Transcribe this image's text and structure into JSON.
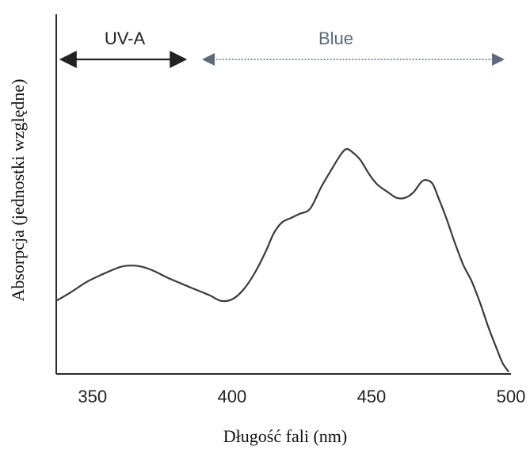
{
  "chart_data": {
    "type": "line",
    "xlabel": "Długość fali (nm)",
    "ylabel": "Absorpcja (jednostki względne)",
    "xlim": [
      337,
      500
    ],
    "ylim": [
      0,
      1
    ],
    "grid": false,
    "x_ticks": [
      350,
      400,
      450,
      500
    ],
    "x_tick_labels": [
      "350",
      "400",
      "450",
      "500"
    ],
    "bands": [
      {
        "label": "UV-A",
        "x_start": 337,
        "x_end": 385,
        "color": "#222222"
      },
      {
        "label": "Blue",
        "x_start": 388,
        "x_end": 499,
        "color": "#5a6a7a"
      }
    ],
    "series": [
      {
        "x": [
          337,
          342,
          348,
          354,
          360,
          364,
          368,
          372,
          378,
          385,
          392,
          396,
          400,
          404,
          408,
          412,
          415,
          418,
          421,
          424,
          428,
          432,
          436,
          439,
          441,
          443,
          446,
          449,
          452,
          456,
          459,
          462,
          465,
          468,
          470,
          472,
          474,
          477,
          480,
          483,
          486,
          489,
          492,
          495,
          497,
          499
        ],
        "y": [
          0.27,
          0.3,
          0.34,
          0.37,
          0.395,
          0.4,
          0.395,
          0.38,
          0.35,
          0.32,
          0.29,
          0.27,
          0.275,
          0.31,
          0.37,
          0.45,
          0.52,
          0.56,
          0.575,
          0.59,
          0.61,
          0.69,
          0.76,
          0.81,
          0.83,
          0.82,
          0.79,
          0.74,
          0.7,
          0.67,
          0.65,
          0.65,
          0.67,
          0.71,
          0.715,
          0.7,
          0.65,
          0.57,
          0.48,
          0.4,
          0.34,
          0.26,
          0.17,
          0.09,
          0.04,
          0.01
        ]
      }
    ]
  }
}
